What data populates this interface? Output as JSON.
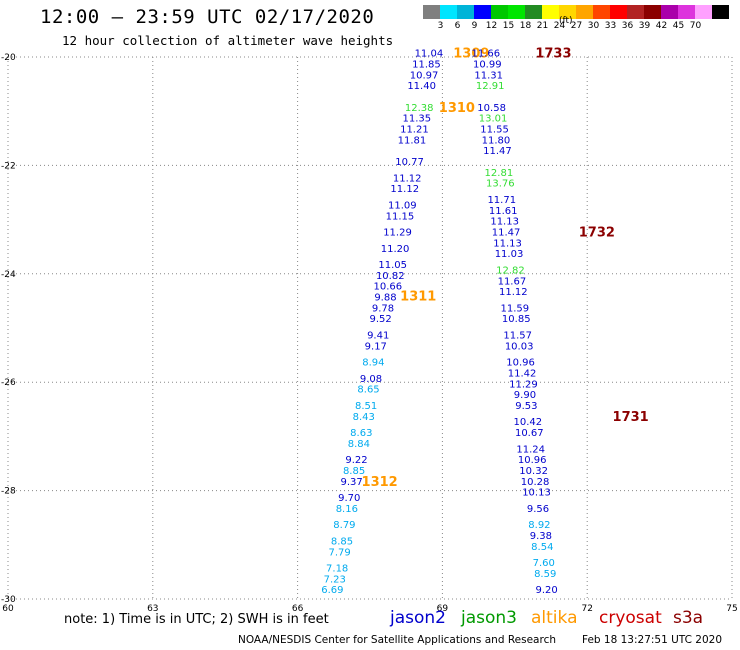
{
  "title": "12:00 – 23:59 UTC 02/17/2020",
  "subtitle": "12 hour collection of altimeter wave heights",
  "colorbar": {
    "unit": "(ft)",
    "labels": [
      "3",
      "6",
      "9",
      "12",
      "15",
      "18",
      "21",
      "24",
      "27",
      "30",
      "33",
      "36",
      "39",
      "42",
      "45",
      "70"
    ],
    "colors": [
      "#7f7f7f",
      "#00e5ff",
      "#00b4d8",
      "#0000ff",
      "#00c800",
      "#00e600",
      "#228b22",
      "#ffff00",
      "#ffd700",
      "#ffa500",
      "#ff4500",
      "#ff0000",
      "#b22222",
      "#8b0000",
      "#aa00aa",
      "#dd33dd",
      "#ffa0ff",
      "#000000"
    ]
  },
  "note": "note: 1) Time is in UTC; 2) SWH is in feet",
  "legend": [
    {
      "name": "jason2",
      "color": "#0000cc"
    },
    {
      "name": "jason3",
      "color": "#009900"
    },
    {
      "name": "altika",
      "color": "#ff9900"
    },
    {
      "name": "cryosat",
      "color": "#cc0000"
    },
    {
      "name": "s3a",
      "color": "#8b0000"
    }
  ],
  "credit": "NOAA/NESDIS Center for Satellite Applications and Research",
  "timestamp": "Feb 18 13:27:51 UTC 2020",
  "chart_data": {
    "type": "scatter",
    "xlim": [
      60,
      75
    ],
    "ylim": [
      -30,
      -20
    ],
    "xticks": [
      "60",
      "63",
      "66",
      "69",
      "72",
      "75"
    ],
    "yticks": [
      "-20",
      "-22",
      "-24",
      "-26",
      "-28",
      "-30"
    ],
    "grid": true,
    "units": "ft",
    "colors": {
      "c12": "#0000cc",
      "c15": "#00aaee",
      "c18": "#33dd33",
      "altika": "#ff9900",
      "s3a": "#8b0000"
    },
    "tracks": [
      {
        "satellite": "altika",
        "times": [
          {
            "label": "1309",
            "x": 69.6,
            "y": -19.92
          },
          {
            "label": "1310",
            "x": 69.3,
            "y": -20.92
          },
          {
            "label": "1311",
            "x": 68.5,
            "y": -24.4
          },
          {
            "label": "1312",
            "x": 67.7,
            "y": -27.82
          }
        ],
        "points": [
          {
            "x": 68.72,
            "y": -19.92,
            "v": "11.04",
            "c": "c12"
          },
          {
            "x": 68.67,
            "y": -20.12,
            "v": "11.85",
            "c": "c12"
          },
          {
            "x": 68.62,
            "y": -20.32,
            "v": "10.97",
            "c": "c12"
          },
          {
            "x": 68.57,
            "y": -20.52,
            "v": "11.40",
            "c": "c12"
          },
          {
            "x": 68.52,
            "y": -20.92,
            "v": "12.38",
            "c": "c18"
          },
          {
            "x": 68.47,
            "y": -21.12,
            "v": "11.35",
            "c": "c12"
          },
          {
            "x": 68.42,
            "y": -21.32,
            "v": "11.21",
            "c": "c12"
          },
          {
            "x": 68.37,
            "y": -21.52,
            "v": "11.81",
            "c": "c12"
          },
          {
            "x": 68.32,
            "y": -21.92,
            "v": "10.77",
            "c": "c12"
          },
          {
            "x": 68.27,
            "y": -22.22,
            "v": "11.12",
            "c": "c12"
          },
          {
            "x": 68.22,
            "y": -22.42,
            "v": "11.12",
            "c": "c12"
          },
          {
            "x": 68.17,
            "y": -22.72,
            "v": "11.09",
            "c": "c12"
          },
          {
            "x": 68.12,
            "y": -22.92,
            "v": "11.15",
            "c": "c12"
          },
          {
            "x": 68.07,
            "y": -23.22,
            "v": "11.29",
            "c": "c12"
          },
          {
            "x": 68.02,
            "y": -23.52,
            "v": "11.20",
            "c": "c12"
          },
          {
            "x": 67.97,
            "y": -23.82,
            "v": "11.05",
            "c": "c12"
          },
          {
            "x": 67.92,
            "y": -24.02,
            "v": "10.82",
            "c": "c12"
          },
          {
            "x": 67.87,
            "y": -24.22,
            "v": "10.66",
            "c": "c12"
          },
          {
            "x": 67.82,
            "y": -24.42,
            "v": "9.88",
            "c": "c12"
          },
          {
            "x": 67.77,
            "y": -24.62,
            "v": "9.78",
            "c": "c12"
          },
          {
            "x": 67.72,
            "y": -24.82,
            "v": "9.52",
            "c": "c12"
          },
          {
            "x": 67.67,
            "y": -25.12,
            "v": "9.41",
            "c": "c12"
          },
          {
            "x": 67.62,
            "y": -25.32,
            "v": "9.17",
            "c": "c12"
          },
          {
            "x": 67.57,
            "y": -25.62,
            "v": "8.94",
            "c": "c15"
          },
          {
            "x": 67.52,
            "y": -25.92,
            "v": "9.08",
            "c": "c12"
          },
          {
            "x": 67.47,
            "y": -26.12,
            "v": "8.65",
            "c": "c15"
          },
          {
            "x": 67.42,
            "y": -26.42,
            "v": "8.51",
            "c": "c15"
          },
          {
            "x": 67.37,
            "y": -26.62,
            "v": "8.43",
            "c": "c15"
          },
          {
            "x": 67.32,
            "y": -26.92,
            "v": "8.63",
            "c": "c15"
          },
          {
            "x": 67.27,
            "y": -27.12,
            "v": "8.84",
            "c": "c15"
          },
          {
            "x": 67.22,
            "y": -27.42,
            "v": "9.22",
            "c": "c12"
          },
          {
            "x": 67.17,
            "y": -27.62,
            "v": "8.85",
            "c": "c15"
          },
          {
            "x": 67.12,
            "y": -27.82,
            "v": "9.37",
            "c": "c12"
          },
          {
            "x": 67.07,
            "y": -28.12,
            "v": "9.70",
            "c": "c12"
          },
          {
            "x": 67.02,
            "y": -28.32,
            "v": "8.16",
            "c": "c15"
          },
          {
            "x": 66.97,
            "y": -28.62,
            "v": "8.79",
            "c": "c15"
          },
          {
            "x": 66.92,
            "y": -28.92,
            "v": "8.85",
            "c": "c15"
          },
          {
            "x": 66.87,
            "y": -29.12,
            "v": "7.79",
            "c": "c15"
          },
          {
            "x": 66.82,
            "y": -29.42,
            "v": "7.18",
            "c": "c15"
          },
          {
            "x": 66.77,
            "y": -29.62,
            "v": "7.23",
            "c": "c15"
          },
          {
            "x": 66.72,
            "y": -29.82,
            "v": "6.69",
            "c": "c15"
          }
        ]
      },
      {
        "satellite": "s3a",
        "times": [
          {
            "label": "1733",
            "x": 71.3,
            "y": -19.92
          },
          {
            "label": "1732",
            "x": 72.2,
            "y": -23.22
          },
          {
            "label": "1731",
            "x": 72.9,
            "y": -26.62
          }
        ],
        "points": [
          {
            "x": 69.9,
            "y": -19.92,
            "v": "11.66",
            "c": "c12"
          },
          {
            "x": 69.93,
            "y": -20.12,
            "v": "10.99",
            "c": "c12"
          },
          {
            "x": 69.96,
            "y": -20.32,
            "v": "11.31",
            "c": "c12"
          },
          {
            "x": 69.99,
            "y": -20.52,
            "v": "12.91",
            "c": "c18"
          },
          {
            "x": 70.02,
            "y": -20.92,
            "v": "10.58",
            "c": "c12"
          },
          {
            "x": 70.05,
            "y": -21.12,
            "v": "13.01",
            "c": "c18"
          },
          {
            "x": 70.08,
            "y": -21.32,
            "v": "11.55",
            "c": "c12"
          },
          {
            "x": 70.11,
            "y": -21.52,
            "v": "11.80",
            "c": "c12"
          },
          {
            "x": 70.14,
            "y": -21.72,
            "v": "11.47",
            "c": "c12"
          },
          {
            "x": 70.17,
            "y": -22.12,
            "v": "12.81",
            "c": "c18"
          },
          {
            "x": 70.2,
            "y": -22.32,
            "v": "13.76",
            "c": "c18"
          },
          {
            "x": 70.23,
            "y": -22.62,
            "v": "11.71",
            "c": "c12"
          },
          {
            "x": 70.26,
            "y": -22.82,
            "v": "11.61",
            "c": "c12"
          },
          {
            "x": 70.29,
            "y": -23.02,
            "v": "11.13",
            "c": "c12"
          },
          {
            "x": 70.32,
            "y": -23.22,
            "v": "11.47",
            "c": "c12"
          },
          {
            "x": 70.35,
            "y": -23.42,
            "v": "11.13",
            "c": "c12"
          },
          {
            "x": 70.38,
            "y": -23.62,
            "v": "11.03",
            "c": "c12"
          },
          {
            "x": 70.41,
            "y": -23.92,
            "v": "12.82",
            "c": "c18"
          },
          {
            "x": 70.44,
            "y": -24.12,
            "v": "11.67",
            "c": "c12"
          },
          {
            "x": 70.47,
            "y": -24.32,
            "v": "11.12",
            "c": "c12"
          },
          {
            "x": 70.5,
            "y": -24.62,
            "v": "11.59",
            "c": "c12"
          },
          {
            "x": 70.53,
            "y": -24.82,
            "v": "10.85",
            "c": "c12"
          },
          {
            "x": 70.56,
            "y": -25.12,
            "v": "11.57",
            "c": "c12"
          },
          {
            "x": 70.59,
            "y": -25.32,
            "v": "10.03",
            "c": "c12"
          },
          {
            "x": 70.62,
            "y": -25.62,
            "v": "10.96",
            "c": "c12"
          },
          {
            "x": 70.65,
            "y": -25.82,
            "v": "11.42",
            "c": "c12"
          },
          {
            "x": 70.68,
            "y": -26.02,
            "v": "11.29",
            "c": "c12"
          },
          {
            "x": 70.71,
            "y": -26.22,
            "v": "9.90",
            "c": "c12"
          },
          {
            "x": 70.74,
            "y": -26.42,
            "v": "9.53",
            "c": "c12"
          },
          {
            "x": 70.77,
            "y": -26.72,
            "v": "10.42",
            "c": "c12"
          },
          {
            "x": 70.8,
            "y": -26.92,
            "v": "10.67",
            "c": "c12"
          },
          {
            "x": 70.83,
            "y": -27.22,
            "v": "11.24",
            "c": "c12"
          },
          {
            "x": 70.86,
            "y": -27.42,
            "v": "10.96",
            "c": "c12"
          },
          {
            "x": 70.89,
            "y": -27.62,
            "v": "10.32",
            "c": "c12"
          },
          {
            "x": 70.92,
            "y": -27.82,
            "v": "10.28",
            "c": "c12"
          },
          {
            "x": 70.95,
            "y": -28.02,
            "v": "10.13",
            "c": "c12"
          },
          {
            "x": 70.98,
            "y": -28.32,
            "v": "9.56",
            "c": "c12"
          },
          {
            "x": 71.01,
            "y": -28.62,
            "v": "8.92",
            "c": "c15"
          },
          {
            "x": 71.04,
            "y": -28.82,
            "v": "9.38",
            "c": "c12"
          },
          {
            "x": 71.07,
            "y": -29.02,
            "v": "8.54",
            "c": "c15"
          },
          {
            "x": 71.1,
            "y": -29.32,
            "v": "7.60",
            "c": "c15"
          },
          {
            "x": 71.13,
            "y": -29.52,
            "v": "8.59",
            "c": "c15"
          },
          {
            "x": 71.16,
            "y": -29.82,
            "v": "9.20",
            "c": "c12"
          }
        ]
      }
    ]
  }
}
